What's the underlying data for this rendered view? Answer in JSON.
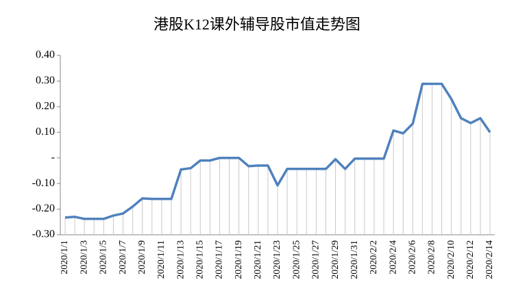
{
  "chart_data": {
    "type": "line",
    "title": "港股K12课外辅导股市值走势图",
    "categories": [
      "2020/1/1",
      null,
      "2020/1/3",
      null,
      "2020/1/5",
      null,
      "2020/1/7",
      null,
      "2020/1/9",
      null,
      "2020/1/11",
      null,
      "2020/1/13",
      null,
      "2020/1/15",
      null,
      "2020/1/17",
      null,
      "2020/1/19",
      null,
      "2020/1/21",
      null,
      "2020/1/23",
      null,
      "2020/1/25",
      null,
      "2020/1/27",
      null,
      "2020/1/29",
      null,
      "2020/1/31",
      null,
      "2020/2/2",
      null,
      "2020/2/4",
      null,
      "2020/2/6",
      null,
      "2020/2/8",
      null,
      "2020/2/10",
      null,
      "2020/2/12",
      null,
      "2020/2/14"
    ],
    "values": [
      -0.233,
      -0.23,
      -0.238,
      -0.238,
      -0.238,
      -0.225,
      -0.217,
      -0.19,
      -0.158,
      -0.16,
      -0.16,
      -0.16,
      -0.045,
      -0.04,
      -0.01,
      -0.01,
      0,
      0,
      0,
      -0.032,
      -0.03,
      -0.03,
      -0.107,
      -0.043,
      -0.043,
      -0.043,
      -0.043,
      -0.043,
      -0.005,
      -0.043,
      -0.003,
      -0.003,
      -0.003,
      -0.003,
      0.107,
      0.096,
      0.134,
      0.289,
      0.289,
      0.289,
      0.23,
      0.155,
      0.136,
      0.155,
      0.1
    ],
    "color": "#4f81bd",
    "ylim": [
      -0.3,
      0.4
    ],
    "yticks": [
      {
        "value": -0.3,
        "label": "-0.30"
      },
      {
        "value": -0.2,
        "label": "-0.20"
      },
      {
        "value": -0.1,
        "label": "-0.10"
      },
      {
        "value": 0,
        "label": "-"
      },
      {
        "value": 0.1,
        "label": "0.10"
      },
      {
        "value": 0.2,
        "label": "0.20"
      },
      {
        "value": 0.3,
        "label": "0.30"
      },
      {
        "value": 0.4,
        "label": "0.40"
      }
    ],
    "drop_lines": true
  }
}
